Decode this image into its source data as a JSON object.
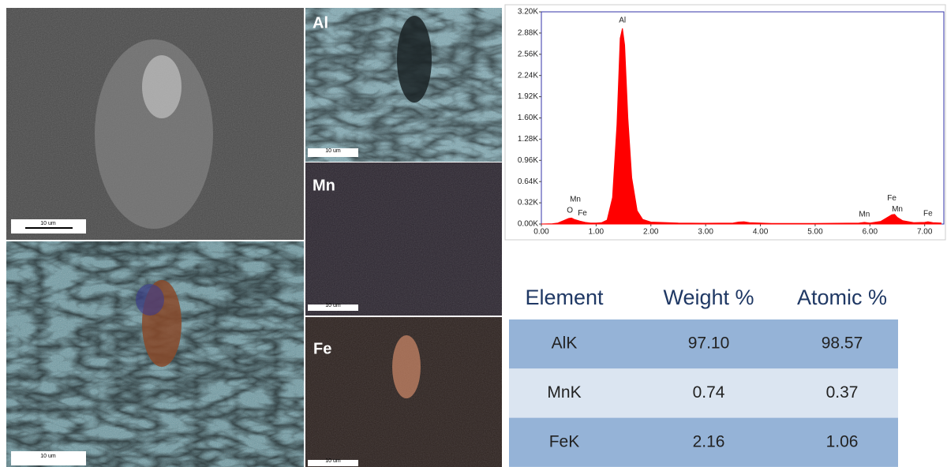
{
  "images": {
    "sem_scale": "10 um",
    "overlay_scale": "10 um",
    "maps": [
      {
        "label": "Al",
        "scale": "10 um"
      },
      {
        "label": "Mn",
        "scale": "10 um"
      },
      {
        "label": "Fe",
        "scale": "10 um"
      }
    ]
  },
  "chart_data": {
    "type": "area",
    "color": "#ff0000",
    "x": [
      0.0,
      0.2,
      0.3,
      0.4,
      0.5,
      0.55,
      0.6,
      0.7,
      0.8,
      0.9,
      1.0,
      1.1,
      1.2,
      1.3,
      1.38,
      1.44,
      1.48,
      1.52,
      1.58,
      1.65,
      1.75,
      1.85,
      2.0,
      2.5,
      3.0,
      3.5,
      3.6,
      3.7,
      3.8,
      4.2,
      5.0,
      5.8,
      5.9,
      6.0,
      6.2,
      6.3,
      6.4,
      6.45,
      6.5,
      6.6,
      6.8,
      7.0,
      7.06,
      7.15,
      7.3
    ],
    "values": [
      0,
      5,
      15,
      50,
      85,
      90,
      70,
      45,
      25,
      15,
      15,
      20,
      60,
      400,
      1500,
      2800,
      2950,
      2700,
      1600,
      700,
      200,
      70,
      30,
      15,
      12,
      15,
      30,
      35,
      20,
      10,
      8,
      15,
      25,
      15,
      40,
      90,
      140,
      145,
      100,
      50,
      20,
      25,
      35,
      20,
      15
    ],
    "xlim": [
      0,
      7.35
    ],
    "ylim": [
      0,
      3200
    ],
    "xticks": [
      {
        "value": 0,
        "label": "0.00"
      },
      {
        "value": 1,
        "label": "1.00"
      },
      {
        "value": 2,
        "label": "2.00"
      },
      {
        "value": 3,
        "label": "3.00"
      },
      {
        "value": 4,
        "label": "4.00"
      },
      {
        "value": 5,
        "label": "5.00"
      },
      {
        "value": 6,
        "label": "6.00"
      },
      {
        "value": 7,
        "label": "7.00"
      }
    ],
    "yticks": [
      {
        "value": 0,
        "label": "0.00K"
      },
      {
        "value": 320,
        "label": "0.32K"
      },
      {
        "value": 640,
        "label": "0.64K"
      },
      {
        "value": 960,
        "label": "0.96K"
      },
      {
        "value": 1280,
        "label": "1.28K"
      },
      {
        "value": 1600,
        "label": "1.60K"
      },
      {
        "value": 1920,
        "label": "1.92K"
      },
      {
        "value": 2240,
        "label": "2.24K"
      },
      {
        "value": 2560,
        "label": "2.56K"
      },
      {
        "value": 2880,
        "label": "2.88K"
      },
      {
        "value": 3200,
        "label": "3.20K"
      }
    ],
    "annotations": [
      {
        "text": "O",
        "x": 0.52
      },
      {
        "text": "Mn",
        "x": 0.62
      },
      {
        "text": "Fe",
        "x": 0.75
      },
      {
        "text": "Al",
        "x": 1.48
      },
      {
        "text": "Mn",
        "x": 5.9
      },
      {
        "text": "Mn",
        "x": 6.5
      },
      {
        "text": "Fe",
        "x": 6.4
      },
      {
        "text": "Fe",
        "x": 7.06
      }
    ]
  },
  "table": {
    "header": [
      "Element",
      "Weight %",
      "Atomic %"
    ],
    "rows": [
      [
        "AlK",
        "97.10",
        "98.57"
      ],
      [
        "MnK",
        "0.74",
        "0.37"
      ],
      [
        "FeK",
        "2.16",
        "1.06"
      ]
    ]
  }
}
